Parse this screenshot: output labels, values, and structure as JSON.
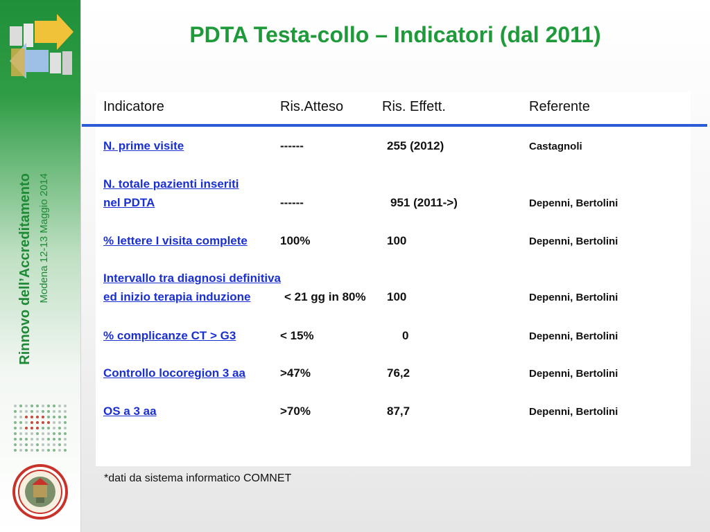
{
  "title": "PDTA Testa-collo – Indicatori (dal 2011)",
  "sidebar": {
    "title": "Rinnovo dell’Accreditamento",
    "subtitle": "Modena 12-13 Maggio 2014",
    "logo_icon": "arrows-logo-icon",
    "seal_icon": "university-seal-icon"
  },
  "table": {
    "headers": [
      "Indicatore",
      "Ris.Atteso",
      "Ris. Effett.",
      "Referente"
    ],
    "rows": [
      {
        "indicatore": [
          "N. prime visite"
        ],
        "atteso": "------",
        "effettivo": "255 (2012)",
        "referente": "Castagnoli"
      },
      {
        "indicatore": [
          "N. totale pazienti inseriti",
          "nel PDTA"
        ],
        "atteso": "------",
        "effettivo": "951 (2011->)",
        "referente": "Depenni, Bertolini"
      },
      {
        "indicatore": [
          "% lettere I visita complete"
        ],
        "atteso": "100%",
        "effettivo": "100",
        "referente": "Depenni, Bertolini"
      },
      {
        "indicatore": [
          "Intervallo tra diagnosi definitiva",
          "ed inizio terapia induzione"
        ],
        "atteso": "< 21 gg in 80%",
        "effettivo": "100",
        "referente": "Depenni, Bertolini"
      },
      {
        "indicatore": [
          "% complicanze CT > G3"
        ],
        "atteso": "< 15%",
        "effettivo": "0",
        "referente": "Depenni, Bertolini"
      },
      {
        "indicatore": [
          "Controllo locoregion 3 aa"
        ],
        "atteso": ">47%",
        "effettivo": "76,2",
        "referente": "Depenni, Bertolini"
      },
      {
        "indicatore": [
          "OS a 3 aa"
        ],
        "atteso": ">70%",
        "effettivo": "87,7",
        "referente": "Depenni, Bertolini"
      }
    ]
  },
  "footnote": "*dati da sistema informatico COMNET",
  "colors": {
    "accent": "#1f9a3a",
    "link": "#1a2fd0",
    "rule": "#2b5bd6"
  }
}
